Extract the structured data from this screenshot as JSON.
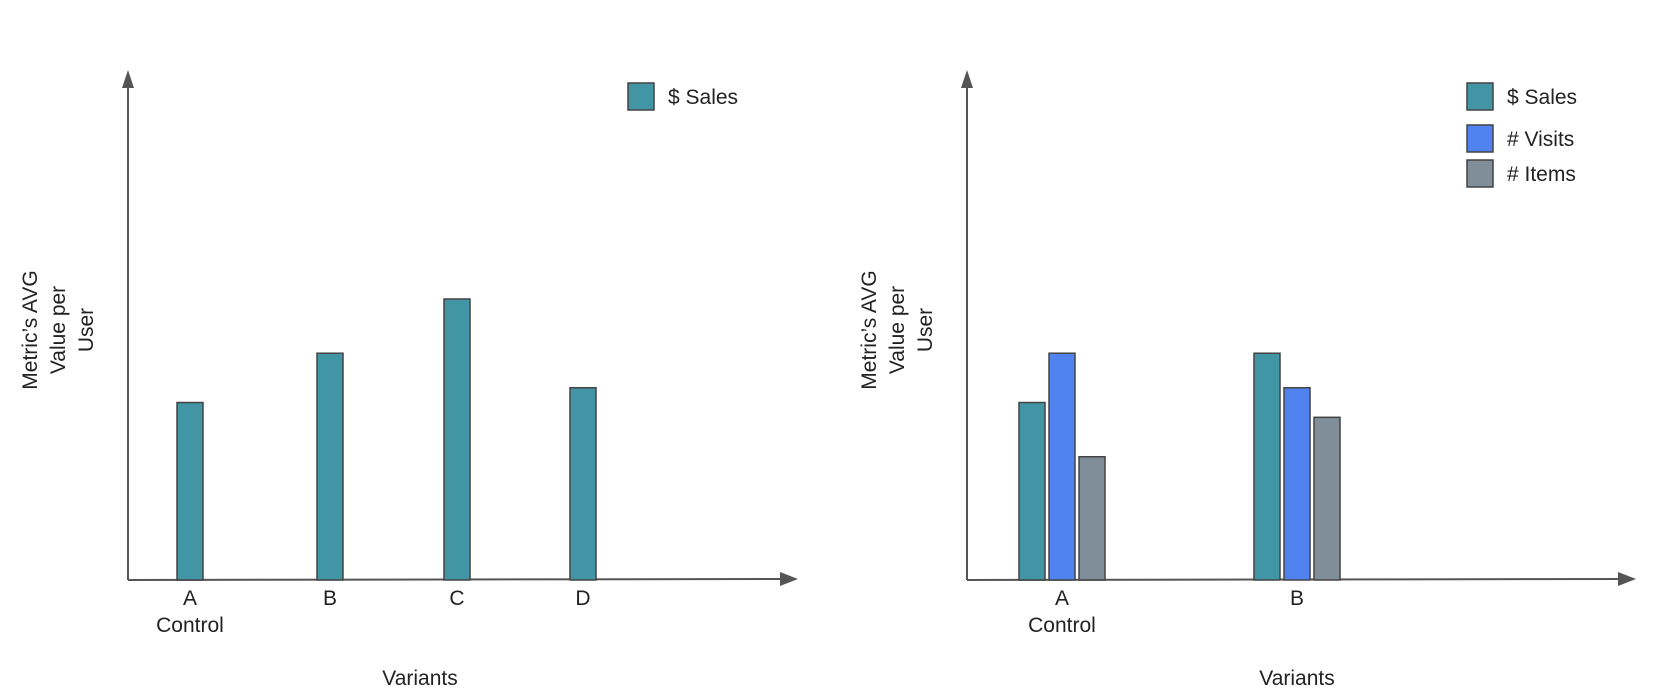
{
  "colors": {
    "sales": "#4295a5",
    "visits": "#5083f0",
    "items": "#7f8e99",
    "axis": "#555555"
  },
  "chart_data": [
    {
      "type": "bar",
      "title": "",
      "xlabel": "Variants",
      "ylabel": "Metric’s AVG Value per User",
      "ylabel_lines": [
        "Metric’s AVG",
        "Value per",
        "User"
      ],
      "categories": [
        "A",
        "B",
        "C",
        "D"
      ],
      "category_sublabels": [
        "Control",
        "",
        "",
        ""
      ],
      "ylim": [
        0,
        100
      ],
      "grid": false,
      "legend_position": "top-right",
      "series": [
        {
          "name": "$ Sales",
          "color_key": "sales",
          "values": [
            36,
            46,
            57,
            39
          ]
        }
      ]
    },
    {
      "type": "bar",
      "title": "",
      "xlabel": "Variants",
      "ylabel": "Metric’s AVG Value per User",
      "ylabel_lines": [
        "Metric’s AVG",
        "Value per",
        "User"
      ],
      "categories": [
        "A",
        "B"
      ],
      "category_sublabels": [
        "Control",
        ""
      ],
      "ylim": [
        0,
        100
      ],
      "grid": false,
      "legend_position": "top-right",
      "series": [
        {
          "name": "$ Sales",
          "color_key": "sales",
          "values": [
            36,
            46
          ]
        },
        {
          "name": "# Visits",
          "color_key": "visits",
          "values": [
            46,
            39
          ]
        },
        {
          "name": "# Items",
          "color_key": "items",
          "values": [
            25,
            33
          ]
        }
      ]
    }
  ]
}
